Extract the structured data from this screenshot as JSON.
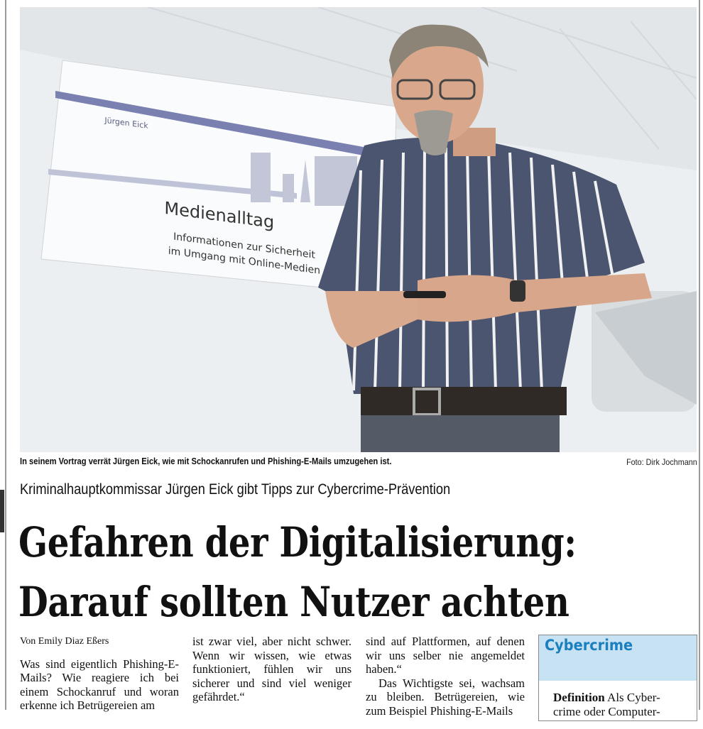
{
  "photo": {
    "slide": {
      "presenter": "Jürgen Eick",
      "title": "Medienalltag",
      "subtitle_line1": "Informationen zur Sicherheit",
      "subtitle_line2": "im Umgang mit Online-Medien"
    },
    "caption": "In seinem Vortrag verrät Jürgen Eick, wie mit Schockanrufen und Phishing-E-Mails umzugehen ist.",
    "credit": "Foto: Dirk Jochmann"
  },
  "article": {
    "kicker": "Kriminalhauptkommissar Jürgen Eick gibt Tipps zur Cybercrime-Prävention",
    "headline_line1": "Gefahren der Digitalisierung:",
    "headline_line2": "Darauf sollten Nutzer achten",
    "byline": "Von Emily Diaz Eßers",
    "col1": [
      "Was sind eigentlich Phishing-E-Mails? Wie reagiere ich bei einem Schockanruf und woran erkenne ich Betrügereien am"
    ],
    "col2": [
      "ist zwar viel, aber nicht schwer. Wenn wir wissen, wie etwas funktioniert, fühlen wir uns sicherer und sind viel weniger gefährdet.“"
    ],
    "col3": [
      "sind auf Plattformen, auf denen wir uns selber nie angemeldet haben.“",
      "Das Wichtigste sei, wachsam zu bleiben. Betrügereien, wie zum Beispiel Phishing-E-Mails"
    ]
  },
  "infobox": {
    "title": "Cybercrime",
    "term": "Definition",
    "text": "Als Cyber-crime oder Computer-"
  },
  "colors": {
    "infobox_header": "#c7e2f3",
    "infobox_title": "#1a7fbf"
  }
}
